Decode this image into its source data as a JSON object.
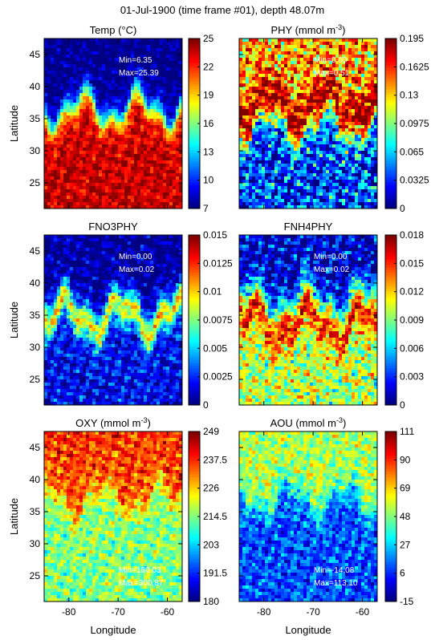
{
  "figure": {
    "title": "01-Jul-1900 (time frame #01), depth 48.07m"
  },
  "chart_data": [
    {
      "type": "heatmap",
      "title": "Temp (°C)",
      "title_sup": "",
      "xlabel": "",
      "ylabel": "Latitude",
      "xlim": [
        -85,
        -57
      ],
      "ylim": [
        21,
        47.5
      ],
      "xticks": [
        -80,
        -70,
        -60
      ],
      "yticks": [
        25,
        30,
        35,
        40,
        45
      ],
      "show_xticklabels": false,
      "show_yticklabels": true,
      "colorbar": {
        "ticks": [
          "7",
          "10",
          "13",
          "16",
          "19",
          "22",
          "25"
        ],
        "min": 7,
        "max": 25
      },
      "annotations": [
        {
          "text": "Min=6.35",
          "pos": "top-right"
        },
        {
          "text": "Max=25.39",
          "pos": "top-right"
        }
      ],
      "field": {
        "pattern": "gradient-south",
        "base_low": 0.0,
        "base_high": 0.93,
        "noise": 0.16,
        "front_lat": 36.5
      }
    },
    {
      "type": "heatmap",
      "title": "PHY (mmol m",
      "title_sup": "-3",
      "title_suffix": ")",
      "xlabel": "",
      "ylabel": "",
      "xlim": [
        -85,
        -57
      ],
      "ylim": [
        21,
        47.5
      ],
      "xticks": [
        -80,
        -70,
        -60
      ],
      "yticks": [
        25,
        30,
        35,
        40,
        45
      ],
      "show_xticklabels": false,
      "show_yticklabels": false,
      "colorbar": {
        "ticks": [
          "0",
          "0.0325",
          "0.065",
          "0.0975",
          "0.13",
          "0.1625",
          "0.195"
        ],
        "min": 0,
        "max": 0.195
      },
      "annotations": [
        {
          "text": "Min=0.00",
          "pos": "top-right"
        },
        {
          "text": "Max=0.51",
          "pos": "top-right"
        }
      ],
      "field": {
        "pattern": "front-mixed",
        "base_low": 0.18,
        "base_high": 0.7,
        "noise": 0.38,
        "front_lat": 36
      }
    },
    {
      "type": "heatmap",
      "title": "FNO3PHY",
      "title_sup": "",
      "xlabel": "",
      "ylabel": "Latitude",
      "xlim": [
        -85,
        -57
      ],
      "ylim": [
        21,
        47.5
      ],
      "xticks": [
        -80,
        -70,
        -60
      ],
      "yticks": [
        25,
        30,
        35,
        40,
        45
      ],
      "show_xticklabels": false,
      "show_yticklabels": true,
      "colorbar": {
        "ticks": [
          "0",
          "0.0025",
          "0.005",
          "0.0075",
          "0.01",
          "0.0125",
          "0.015"
        ],
        "min": 0,
        "max": 0.015
      },
      "annotations": [
        {
          "text": "Min=0.00",
          "pos": "top-right"
        },
        {
          "text": "Max=0.02",
          "pos": "top-right"
        }
      ],
      "field": {
        "pattern": "front-band",
        "base_low": 0.12,
        "base_high": 0.02,
        "noise": 0.22,
        "front_lat": 35
      }
    },
    {
      "type": "heatmap",
      "title": "FNH4PHY",
      "title_sup": "",
      "xlabel": "",
      "ylabel": "",
      "xlim": [
        -85,
        -57
      ],
      "ylim": [
        21,
        47.5
      ],
      "xticks": [
        -80,
        -70,
        -60
      ],
      "yticks": [
        25,
        30,
        35,
        40,
        45
      ],
      "show_xticklabels": false,
      "show_yticklabels": false,
      "colorbar": {
        "ticks": [
          "0",
          "0.003",
          "0.006",
          "0.009",
          "0.012",
          "0.015",
          "0.018"
        ],
        "min": 0,
        "max": 0.018
      },
      "annotations": [
        {
          "text": "Min=0.00",
          "pos": "top-right"
        },
        {
          "text": "Max=0.02",
          "pos": "top-right"
        }
      ],
      "field": {
        "pattern": "front-mixed",
        "base_low": 0.55,
        "base_high": 0.08,
        "noise": 0.3,
        "front_lat": 35
      }
    },
    {
      "type": "heatmap",
      "title": "OXY (mmol m",
      "title_sup": "-3",
      "title_suffix": ")",
      "xlabel": "Longitude",
      "ylabel": "Latitude",
      "xlim": [
        -85,
        -57
      ],
      "ylim": [
        21,
        47.5
      ],
      "xticks": [
        -80,
        -70,
        -60
      ],
      "yticks": [
        25,
        30,
        35,
        40,
        45
      ],
      "show_xticklabels": true,
      "show_yticklabels": true,
      "colorbar": {
        "ticks": [
          "180",
          "191.5",
          "203",
          "214.5",
          "226",
          "237.5",
          "249"
        ],
        "min": 180,
        "max": 249
      },
      "annotations": [
        {
          "text": "Min=180.03",
          "pos": "bottom-right"
        },
        {
          "text": "Max=300.87",
          "pos": "bottom-right"
        }
      ],
      "field": {
        "pattern": "gradient-north",
        "base_low": 0.5,
        "base_high": 0.82,
        "noise": 0.2,
        "front_lat": 37
      }
    },
    {
      "type": "heatmap",
      "title": "AOU (mmol m",
      "title_sup": "-3",
      "title_suffix": ")",
      "xlabel": "Longitude",
      "ylabel": "",
      "xlim": [
        -85,
        -57
      ],
      "ylim": [
        21,
        47.5
      ],
      "xticks": [
        -80,
        -70,
        -60
      ],
      "yticks": [
        25,
        30,
        35,
        40,
        45
      ],
      "show_xticklabels": true,
      "show_yticklabels": false,
      "colorbar": {
        "ticks": [
          "-15",
          "6",
          "27",
          "48",
          "69",
          "90",
          "111"
        ],
        "min": -15,
        "max": 111
      },
      "annotations": [
        {
          "text": "Min=-14.08",
          "pos": "bottom-right"
        },
        {
          "text": "Max=113.10",
          "pos": "bottom-right"
        }
      ],
      "field": {
        "pattern": "gradient-north",
        "base_low": 0.2,
        "base_high": 0.55,
        "noise": 0.2,
        "front_lat": 37
      }
    }
  ]
}
